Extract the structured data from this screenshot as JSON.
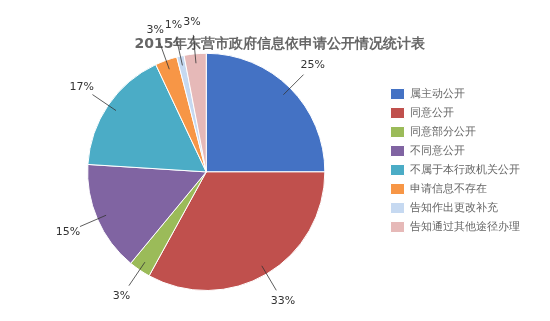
{
  "chart_data": {
    "type": "pie",
    "title": "2015年东营市政府信息依申请公开情况统计表",
    "categories": [
      "属主动公开",
      "同意公开",
      "同意部分公开",
      "不同意公开",
      "不属于本行政机关公开",
      "申请信息不存在",
      "告知作出更改补充",
      "告知通过其他途径办理"
    ],
    "values": [
      25,
      33,
      3,
      15,
      17,
      3,
      1,
      3
    ],
    "value_labels": [
      "25%",
      "33%",
      "3%",
      "15%",
      "17%",
      "3%",
      "1%",
      "3%"
    ],
    "colors": [
      "#4472C4",
      "#C0504D",
      "#9BBB59",
      "#8064A2",
      "#4BACC6",
      "#F79646",
      "#C6D9F1",
      "#E6B9B8"
    ],
    "data_labels": true,
    "legend": "right"
  }
}
